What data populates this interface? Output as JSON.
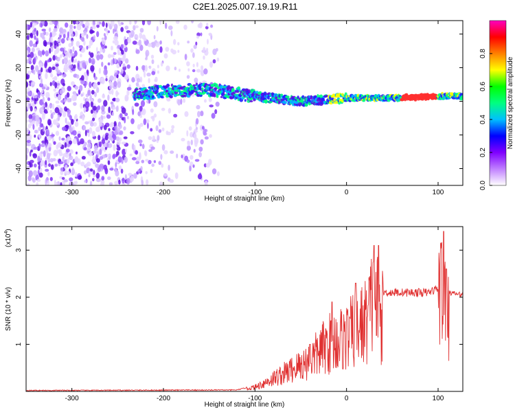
{
  "figure": {
    "title": "C2E1.2025.007.19.19.R11"
  },
  "chart_data": [
    {
      "type": "heatmap",
      "xlabel": "Height of straight line (km)",
      "ylabel": "Frequency (Hz)",
      "xlim": [
        -350,
        127
      ],
      "ylim": [
        -50,
        48
      ],
      "x_ticks": [
        -300,
        -200,
        -100,
        0,
        100
      ],
      "y_ticks": [
        -40,
        -20,
        0,
        20,
        40
      ],
      "colorbar": {
        "label": "Normalized spectral amplitude",
        "range": [
          0,
          1
        ],
        "ticks": [
          "0.0",
          "0.2",
          "0.4",
          "0.6",
          "0.8"
        ],
        "colormap": [
          "#ffffff",
          "#c080ff",
          "#8000ff",
          "#0000ff",
          "#00c0ff",
          "#00ff80",
          "#00ff00",
          "#ffff00",
          "#ff8000",
          "#ff0000",
          "#ff00c0"
        ]
      },
      "ridge": [
        {
          "x": -230,
          "y": 4
        },
        {
          "x": -200,
          "y": 6
        },
        {
          "x": -150,
          "y": 7
        },
        {
          "x": -100,
          "y": 3
        },
        {
          "x": -50,
          "y": 0
        },
        {
          "x": 0,
          "y": 2
        },
        {
          "x": 50,
          "y": 2
        },
        {
          "x": 100,
          "y": 3
        },
        {
          "x": 127,
          "y": 3
        }
      ]
    },
    {
      "type": "line",
      "xlabel": "Height of straight line (km)",
      "ylabel": "SNR (10 * v/v)",
      "y_multiplier": "(x10",
      "y_multiplier_exp": "4",
      "xlim": [
        -350,
        127
      ],
      "ylim": [
        0,
        3.5
      ],
      "x_ticks": [
        -300,
        -200,
        -100,
        0,
        100
      ],
      "y_ticks": [
        1,
        2,
        3
      ],
      "color": "#e03030",
      "envelope": [
        {
          "x": -350,
          "y": 0.02
        },
        {
          "x": -120,
          "y": 0.03
        },
        {
          "x": -100,
          "y": 0.12
        },
        {
          "x": -70,
          "y": 0.5
        },
        {
          "x": -40,
          "y": 0.9
        },
        {
          "x": -20,
          "y": 1.4
        },
        {
          "x": 0,
          "y": 1.6
        },
        {
          "x": 20,
          "y": 2.0
        },
        {
          "x": 30,
          "y": 2.7
        },
        {
          "x": 40,
          "y": 2.1
        },
        {
          "x": 60,
          "y": 2.1
        },
        {
          "x": 90,
          "y": 2.1
        },
        {
          "x": 100,
          "y": 2.2
        },
        {
          "x": 105,
          "y": 3.3
        },
        {
          "x": 110,
          "y": 2.1
        },
        {
          "x": 127,
          "y": 2.05
        }
      ],
      "spikes": [
        {
          "x": -40,
          "y": 1.0
        },
        {
          "x": -16,
          "y": 1.9
        },
        {
          "x": 10,
          "y": 2.3
        },
        {
          "x": 30,
          "y": 3.1
        },
        {
          "x": 35,
          "y": 3.1
        },
        {
          "x": 103,
          "y": 3.15
        },
        {
          "x": 106,
          "y": 3.4
        },
        {
          "x": 109,
          "y": 2.6
        }
      ]
    }
  ]
}
